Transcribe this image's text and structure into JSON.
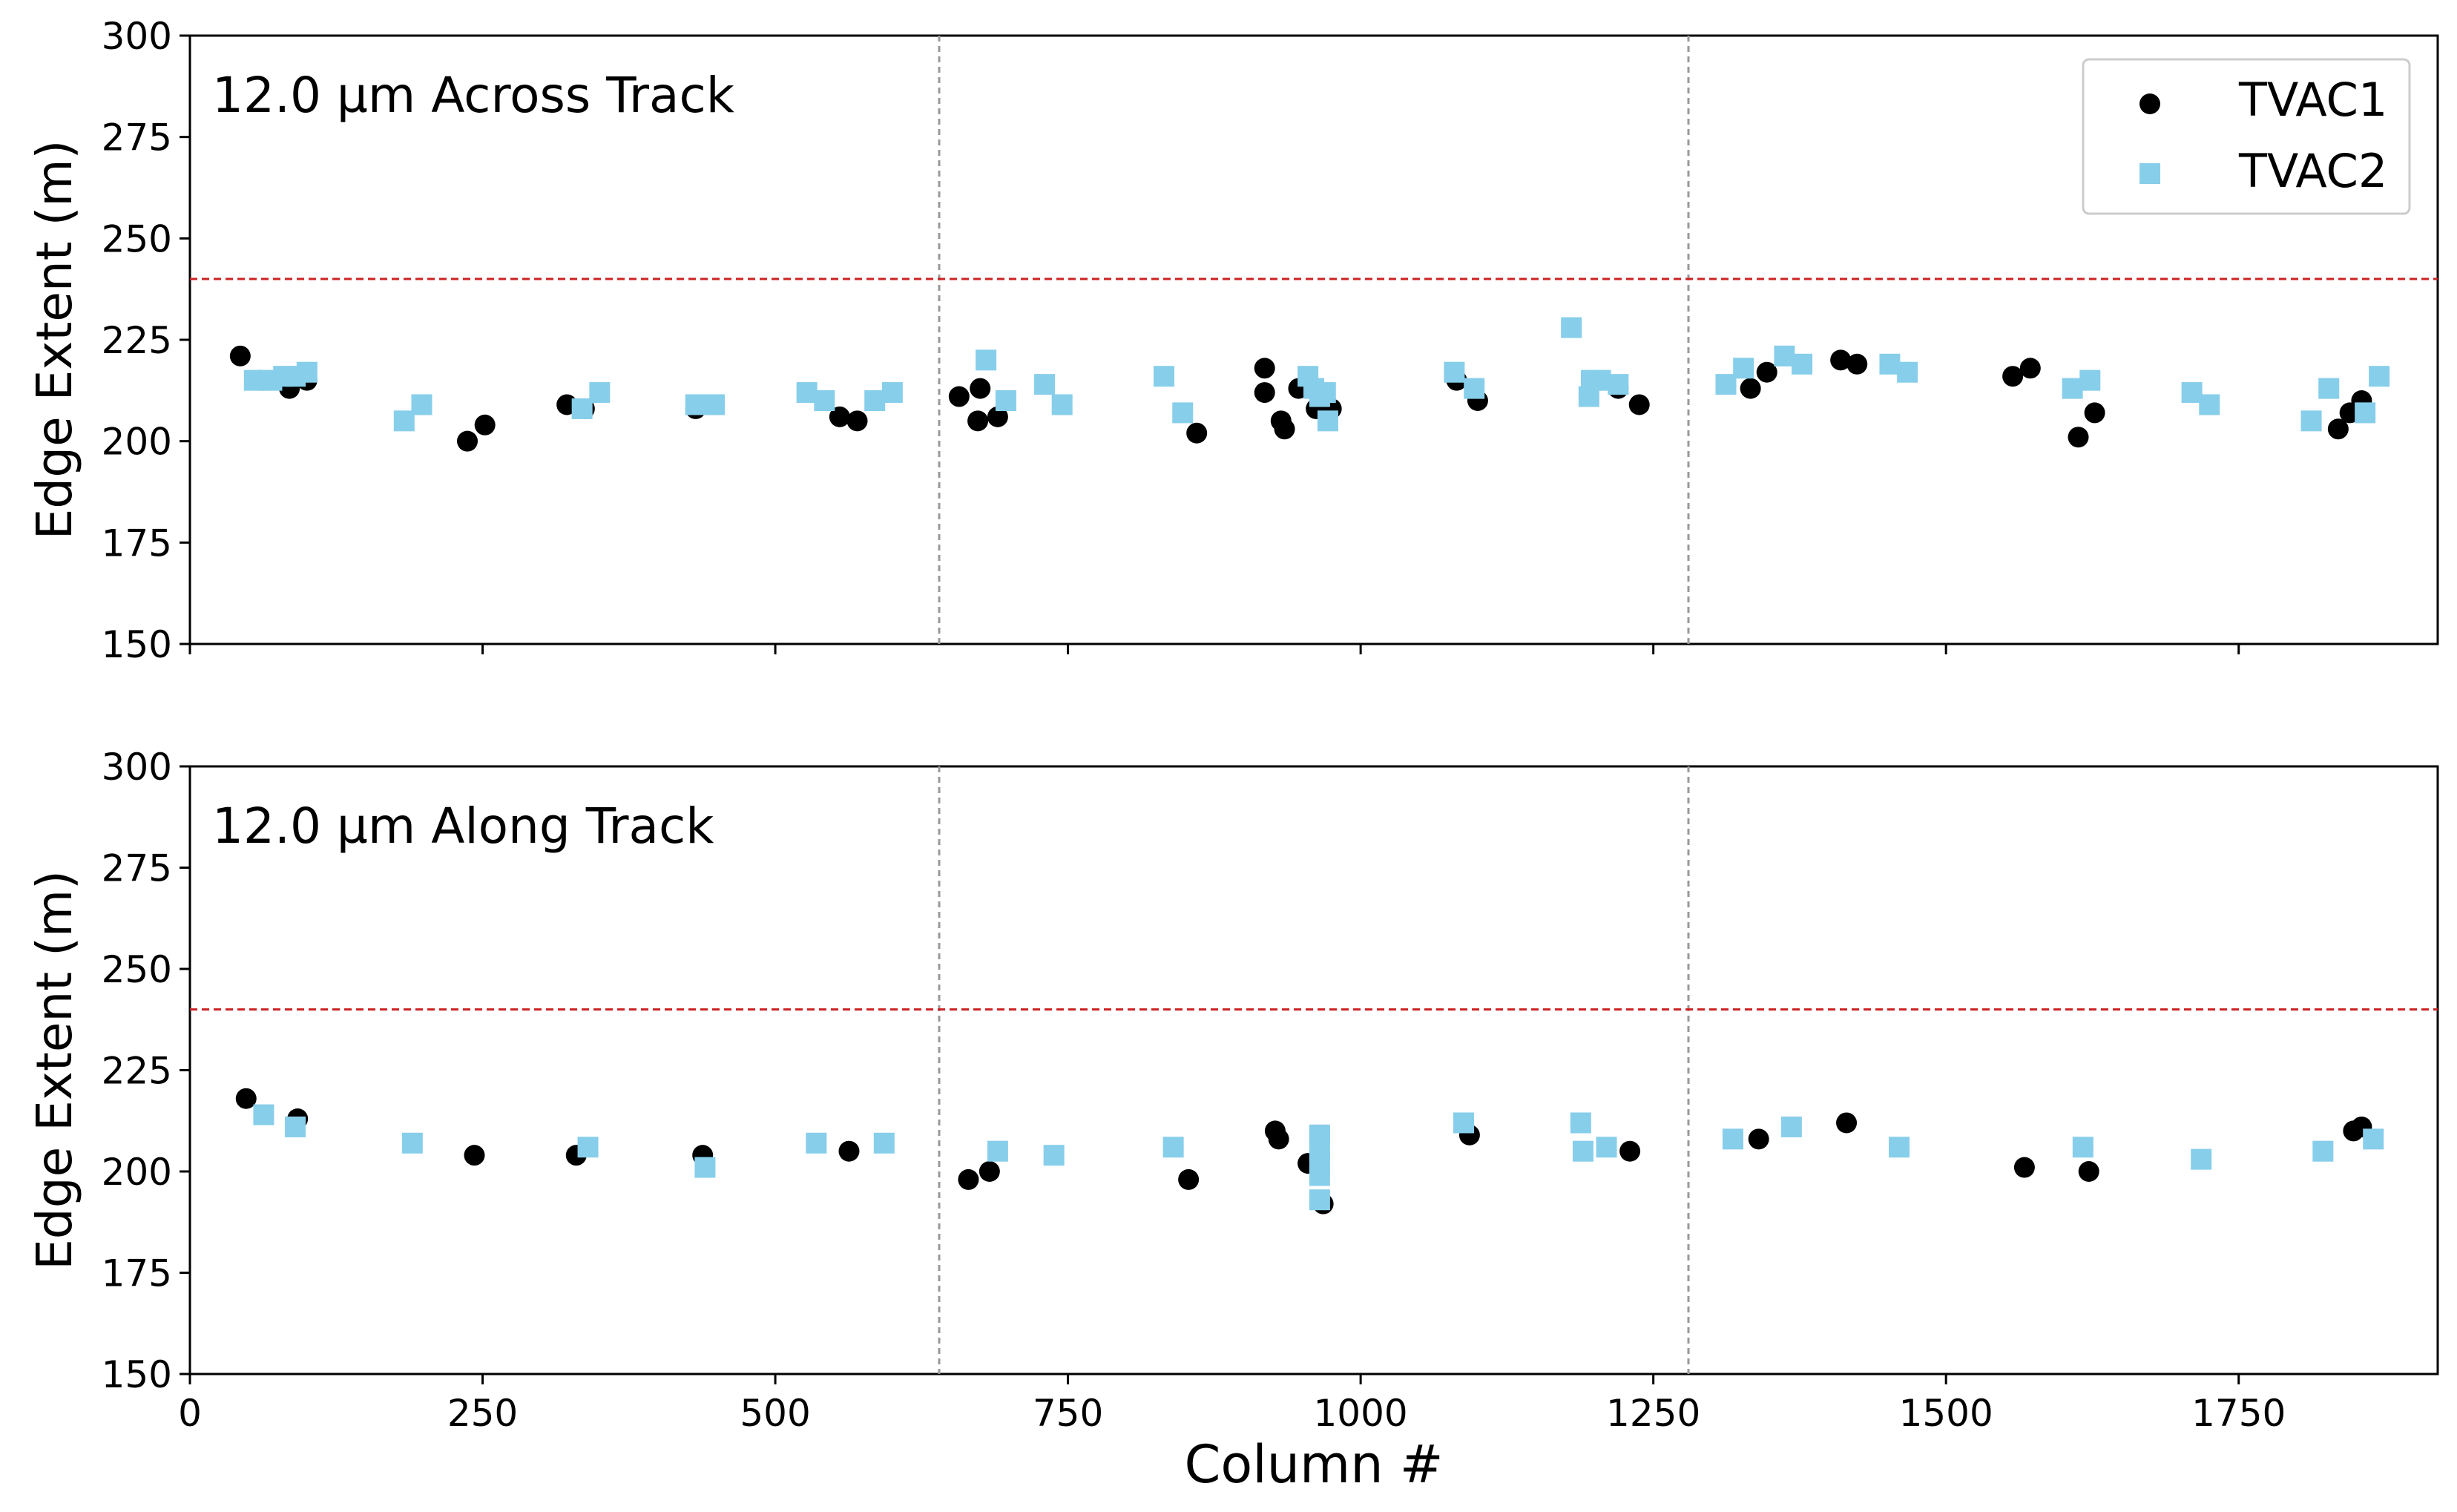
{
  "colors": {
    "TVAC1": "#000000",
    "TVAC2": "#87ceeb",
    "threshold": "#cc2222",
    "divider": "#999999"
  },
  "chart_data": [
    {
      "type": "scatter",
      "title": "12.0 µm Across Track",
      "xlabel": "",
      "ylabel": "Edge Extent (m)",
      "xlim": [
        0,
        1920
      ],
      "ylim": [
        150,
        300
      ],
      "xticks": [
        0,
        250,
        500,
        750,
        1000,
        1250,
        1500,
        1750
      ],
      "xtick_labels_visible": false,
      "yticks": [
        150,
        175,
        200,
        225,
        250,
        275,
        300
      ],
      "threshold": 240,
      "vertical_dividers": [
        640,
        1280
      ],
      "legend": {
        "position": "top-right",
        "entries": [
          "TVAC1",
          "TVAC2"
        ]
      },
      "series": [
        {
          "name": "TVAC1",
          "marker": "circle",
          "x": [
            43,
            60,
            85,
            100,
            237,
            252,
            322,
            337,
            432,
            445,
            555,
            570,
            657,
            673,
            675,
            690,
            860,
            918,
            918,
            932,
            935,
            947,
            962,
            975,
            1082,
            1100,
            1220,
            1238,
            1333,
            1347,
            1410,
            1424,
            1557,
            1572,
            1613,
            1627,
            1835,
            1845,
            1855
          ],
          "y": [
            221,
            215,
            213,
            215,
            200,
            204,
            209,
            208,
            208,
            209,
            206,
            205,
            211,
            205,
            213,
            206,
            202,
            218,
            212,
            205,
            203,
            213,
            208,
            208,
            215,
            210,
            213,
            209,
            213,
            217,
            220,
            219,
            216,
            218,
            201,
            207,
            203,
            207,
            210
          ]
        },
        {
          "name": "TVAC2",
          "marker": "square",
          "x": [
            55,
            70,
            80,
            90,
            100,
            183,
            198,
            335,
            350,
            432,
            448,
            527,
            542,
            585,
            600,
            680,
            697,
            730,
            745,
            832,
            848,
            955,
            960,
            965,
            970,
            972,
            1080,
            1097,
            1180,
            1195,
            1197,
            1205,
            1220,
            1312,
            1327,
            1362,
            1377,
            1452,
            1467,
            1608,
            1623,
            1710,
            1725,
            1812,
            1827,
            1858,
            1870
          ],
          "y": [
            215,
            215,
            216,
            216,
            217,
            205,
            209,
            208,
            212,
            209,
            209,
            212,
            210,
            210,
            212,
            220,
            210,
            214,
            209,
            216,
            207,
            216,
            213,
            211,
            212,
            205,
            217,
            213,
            228,
            211,
            215,
            215,
            214,
            214,
            218,
            221,
            219,
            219,
            217,
            213,
            215,
            212,
            209,
            205,
            213,
            207,
            216
          ]
        }
      ]
    },
    {
      "type": "scatter",
      "title": "12.0 µm Along Track",
      "xlabel": "Column #",
      "ylabel": "Edge Extent (m)",
      "xlim": [
        0,
        1920
      ],
      "ylim": [
        150,
        300
      ],
      "xticks": [
        0,
        250,
        500,
        750,
        1000,
        1250,
        1500,
        1750
      ],
      "xtick_labels_visible": true,
      "yticks": [
        150,
        175,
        200,
        225,
        250,
        275,
        300
      ],
      "threshold": 240,
      "vertical_dividers": [
        640,
        1280
      ],
      "legend": null,
      "series": [
        {
          "name": "TVAC1",
          "marker": "circle",
          "x": [
            48,
            92,
            243,
            330,
            438,
            563,
            665,
            683,
            853,
            927,
            930,
            955,
            968,
            1093,
            1230,
            1340,
            1415,
            1567,
            1622,
            1848,
            1855
          ],
          "y": [
            218,
            213,
            204,
            204,
            204,
            205,
            198,
            200,
            198,
            210,
            208,
            202,
            192,
            209,
            205,
            208,
            212,
            201,
            200,
            210,
            211
          ]
        },
        {
          "name": "TVAC2",
          "marker": "square",
          "x": [
            63,
            90,
            190,
            340,
            440,
            535,
            593,
            690,
            738,
            840,
            965,
            965,
            965,
            965,
            965,
            965,
            1088,
            1188,
            1190,
            1210,
            1318,
            1368,
            1460,
            1617,
            1718,
            1822,
            1865
          ],
          "y": [
            214,
            211,
            207,
            206,
            201,
            207,
            207,
            205,
            204,
            206,
            209,
            205,
            202,
            199,
            193,
            209,
            212,
            212,
            205,
            206,
            208,
            211,
            206,
            206,
            203,
            205,
            208
          ]
        }
      ]
    }
  ]
}
